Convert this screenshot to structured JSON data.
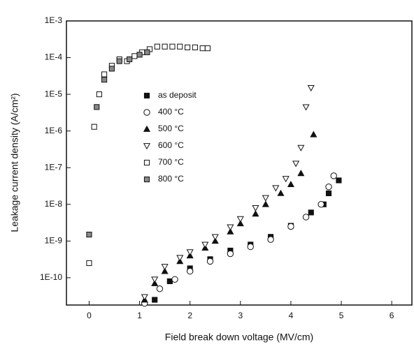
{
  "chart_data": {
    "type": "scatter",
    "x_label": "Field break down voltage (MV/cm)",
    "y_label": "Leakage current density (A/cm²)",
    "log_y": true,
    "xlim": [
      -0.45,
      6.4
    ],
    "ylim": [
      1.8e-11,
      0.001
    ],
    "xticks": [
      0,
      1,
      2,
      3,
      4,
      5,
      6
    ],
    "yticks": [
      {
        "value": 1e-10,
        "label": "1E-10"
      },
      {
        "value": 1e-09,
        "label": "1E-9"
      },
      {
        "value": 1e-08,
        "label": "1E-8"
      },
      {
        "value": 1e-07,
        "label": "1E-7"
      },
      {
        "value": 1e-06,
        "label": "1E-6"
      },
      {
        "value": 1e-05,
        "label": "1E-5"
      },
      {
        "value": 0.0001,
        "label": "1E-4"
      },
      {
        "value": 0.001,
        "label": "1E-3"
      }
    ],
    "legend": "upper-center",
    "series": [
      {
        "name": "as deposit",
        "color": "#111111",
        "marker": "square-filled",
        "x": [
          1.3,
          1.6,
          2.0,
          2.4,
          2.8,
          3.2,
          3.6,
          4.0,
          4.4,
          4.65,
          4.75,
          4.95
        ],
        "y": [
          2.5e-11,
          8e-11,
          1.8e-10,
          3.2e-10,
          5.5e-10,
          8e-10,
          1.3e-09,
          2.6e-09,
          6e-09,
          1e-08,
          2e-08,
          4.5e-08
        ]
      },
      {
        "name": "400 °C",
        "color": "#111111",
        "marker": "circle-open",
        "x": [
          1.1,
          1.4,
          1.7,
          2.0,
          2.4,
          2.8,
          3.2,
          3.6,
          4.0,
          4.3,
          4.6,
          4.75,
          4.85
        ],
        "y": [
          2e-11,
          5e-11,
          9e-11,
          1.5e-10,
          2.8e-10,
          4.5e-10,
          7e-10,
          1.1e-09,
          2.5e-09,
          4.5e-09,
          1e-08,
          3e-08,
          6e-08
        ]
      },
      {
        "name": "500 °C",
        "color": "#111111",
        "marker": "triangle-filled",
        "x": [
          1.1,
          1.3,
          1.5,
          1.8,
          2.0,
          2.3,
          2.5,
          2.8,
          3.0,
          3.3,
          3.5,
          3.8,
          4.0,
          4.2,
          4.45
        ],
        "y": [
          2.5e-11,
          7e-11,
          1.5e-10,
          2.8e-10,
          4e-10,
          6.5e-10,
          1e-09,
          1.8e-09,
          3e-09,
          5.5e-09,
          1e-08,
          2e-08,
          3.5e-08,
          7e-08,
          8e-07
        ]
      },
      {
        "name": "600 °C",
        "color": "#111111",
        "marker": "triangle-down-open",
        "x": [
          1.1,
          1.3,
          1.5,
          1.8,
          2.0,
          2.3,
          2.5,
          2.8,
          3.0,
          3.3,
          3.5,
          3.7,
          3.9,
          4.1,
          4.2,
          4.3,
          4.4
        ],
        "y": [
          3e-11,
          9e-11,
          2e-10,
          3.5e-10,
          5e-10,
          8e-10,
          1.3e-09,
          2.4e-09,
          4e-09,
          8e-09,
          1.5e-08,
          2.8e-08,
          5e-08,
          1.3e-07,
          3.5e-07,
          4.5e-06,
          1.5e-05
        ]
      },
      {
        "name": "700 °C",
        "color": "#111111",
        "marker": "square-open",
        "x": [
          0,
          0.1,
          0.2,
          0.3,
          0.45,
          0.6,
          0.75,
          0.9,
          1.05,
          1.2,
          1.35,
          1.5,
          1.65,
          1.8,
          1.95,
          2.1,
          2.25,
          2.35
        ],
        "y": [
          2.5e-10,
          1.3e-06,
          1e-05,
          3.5e-05,
          6e-05,
          9e-05,
          8e-05,
          0.00011,
          0.00014,
          0.00017,
          0.0002,
          0.0002,
          0.0002,
          0.0002,
          0.00019,
          0.00019,
          0.00018,
          0.00018
        ]
      },
      {
        "name": "800 °C",
        "color": "#111111",
        "marker": "square-cross",
        "x": [
          0,
          0.15,
          0.3,
          0.45,
          0.6,
          0.8,
          1.0,
          1.15
        ],
        "y": [
          1.5e-09,
          4.5e-06,
          2.5e-05,
          5e-05,
          8e-05,
          9e-05,
          0.00012,
          0.00014
        ]
      }
    ]
  }
}
